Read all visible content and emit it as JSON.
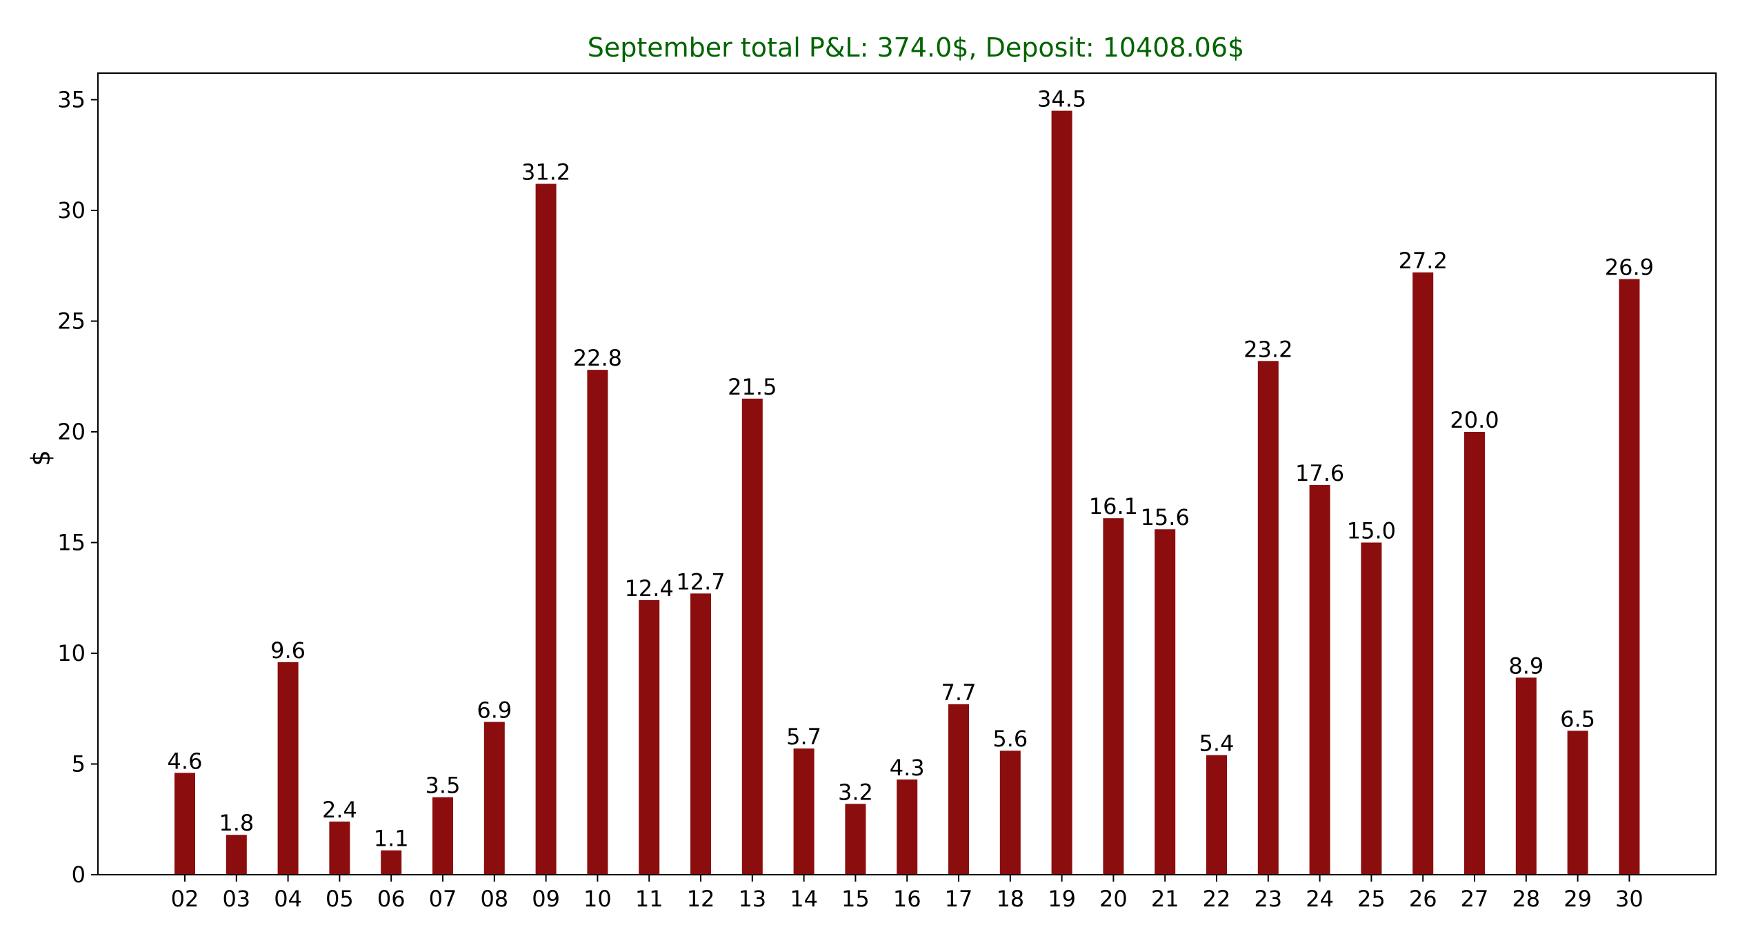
{
  "chart_data": {
    "type": "bar",
    "title": "September total P&L: 374.0$, Deposit: 10408.06$",
    "xlabel": "",
    "ylabel": "$",
    "ylim": [
      0,
      36.2
    ],
    "yticks": [
      0,
      5,
      10,
      15,
      20,
      25,
      30,
      35
    ],
    "ytick_labels": [
      "0",
      "5",
      "10",
      "15",
      "20",
      "25",
      "30",
      "35"
    ],
    "categories": [
      "02",
      "03",
      "04",
      "05",
      "06",
      "07",
      "08",
      "09",
      "10",
      "11",
      "12",
      "13",
      "14",
      "15",
      "16",
      "17",
      "18",
      "19",
      "20",
      "21",
      "22",
      "23",
      "24",
      "25",
      "26",
      "27",
      "28",
      "29",
      "30"
    ],
    "values": [
      4.6,
      1.8,
      9.6,
      2.4,
      1.1,
      3.5,
      6.9,
      31.2,
      22.8,
      12.4,
      12.7,
      21.5,
      5.7,
      3.2,
      4.3,
      7.7,
      5.6,
      34.5,
      16.1,
      15.6,
      5.4,
      23.2,
      17.6,
      15.0,
      27.2,
      20.0,
      8.9,
      6.5,
      26.9
    ],
    "data_labels": [
      "4.6",
      "1.8",
      "9.6",
      "2.4",
      "1.1",
      "3.5",
      "6.9",
      "31.2",
      "22.8",
      "12.4",
      "12.7",
      "21.5",
      "5.7",
      "3.2",
      "4.3",
      "7.7",
      "5.6",
      "34.5",
      "16.1",
      "15.6",
      "5.4",
      "23.2",
      "17.6",
      "15.0",
      "27.2",
      "20.0",
      "8.9",
      "6.5",
      "26.9"
    ],
    "bar_color": "#8b0d0d",
    "title_color": "#006400",
    "grid": false,
    "legend": "none"
  }
}
